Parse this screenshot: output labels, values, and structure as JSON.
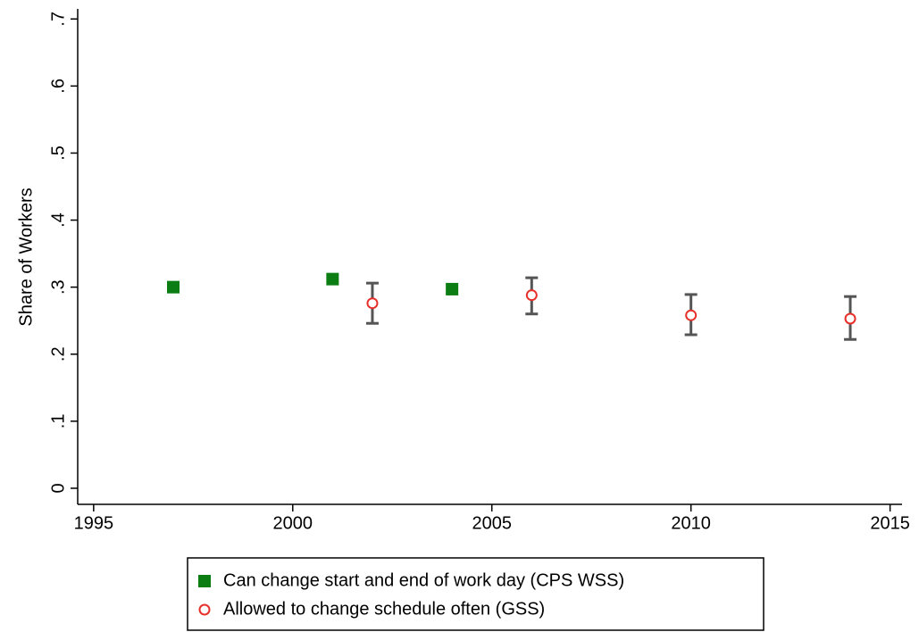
{
  "chart_data": {
    "type": "scatter",
    "y_label": "Share of Workers",
    "xlim": [
      1994.6,
      2015.3
    ],
    "xticks": [
      1995,
      2000,
      2005,
      2010,
      2015
    ],
    "ylim": [
      -0.024,
      0.715
    ],
    "yticks": [
      0,
      {
        "value": 0.1,
        "label": ".1"
      },
      {
        "value": 0.2,
        "label": ".2"
      },
      {
        "value": 0.3,
        "label": ".3"
      },
      {
        "value": 0.4,
        "label": ".4"
      },
      {
        "value": 0.5,
        "label": ".5"
      },
      {
        "value": 0.6,
        "label": ".6"
      },
      {
        "value": 0.7,
        "label": ".7"
      }
    ],
    "grid": false,
    "series": [
      {
        "name": "Can change start and end of work day (CPS WSS)",
        "color": "#0b7d12",
        "marker": "square",
        "x": [
          1997,
          2001,
          2004
        ],
        "values": [
          0.3,
          0.312,
          0.297
        ]
      },
      {
        "name": "Allowed to change schedule often (GSS)",
        "color": "#e8302a",
        "marker": "circle",
        "error_color": "#555555",
        "x": [
          2002,
          2006,
          2010,
          2014
        ],
        "values": [
          0.276,
          0.288,
          0.258,
          0.253
        ],
        "low": [
          0.246,
          0.26,
          0.229,
          0.222
        ],
        "high": [
          0.306,
          0.314,
          0.289,
          0.286
        ]
      }
    ]
  }
}
